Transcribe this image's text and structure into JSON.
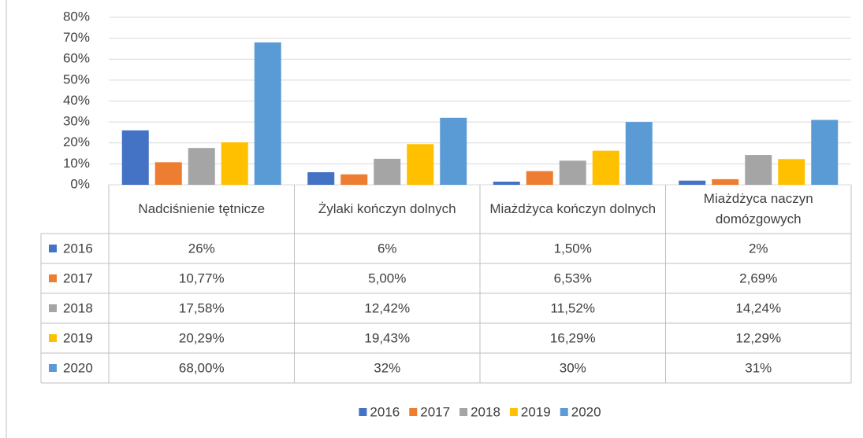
{
  "chart_data": {
    "type": "bar",
    "categories": [
      "Nadciśnienie tętnicze",
      "Żylaki kończyn dolnych",
      "Miażdżyca kończyn dolnych",
      "Miażdżyca naczyn domózgowych"
    ],
    "series": [
      {
        "name": "2016",
        "color": "#4472c4",
        "values": [
          26,
          6,
          1.5,
          2
        ],
        "value_labels": [
          "26%",
          "6%",
          "1,50%",
          "2%"
        ]
      },
      {
        "name": "2017",
        "color": "#ed7d31",
        "values": [
          10.77,
          5,
          6.53,
          2.69
        ],
        "value_labels": [
          "10,77%",
          "5,00%",
          "6,53%",
          "2,69%"
        ]
      },
      {
        "name": "2018",
        "color": "#a5a5a5",
        "values": [
          17.58,
          12.42,
          11.52,
          14.24
        ],
        "value_labels": [
          "17,58%",
          "12,42%",
          "11,52%",
          "14,24%"
        ]
      },
      {
        "name": "2019",
        "color": "#ffc000",
        "values": [
          20.29,
          19.43,
          16.29,
          12.29
        ],
        "value_labels": [
          "20,29%",
          "19,43%",
          "16,29%",
          "12,29%"
        ]
      },
      {
        "name": "2020",
        "color": "#5b9bd5",
        "values": [
          68,
          32,
          30,
          31
        ],
        "value_labels": [
          "68,00%",
          "32%",
          "30%",
          "31%"
        ]
      }
    ],
    "ylim": [
      0,
      80
    ],
    "yticks": [
      {
        "value": 0,
        "label": "0%"
      },
      {
        "value": 10,
        "label": "10%"
      },
      {
        "value": 20,
        "label": "20%"
      },
      {
        "value": 30,
        "label": "30%"
      },
      {
        "value": 40,
        "label": "40%"
      },
      {
        "value": 50,
        "label": "50%"
      },
      {
        "value": 60,
        "label": "60%"
      },
      {
        "value": 70,
        "label": "70%"
      },
      {
        "value": 80,
        "label": "80%"
      }
    ],
    "grid": true,
    "legend": "bottom"
  }
}
